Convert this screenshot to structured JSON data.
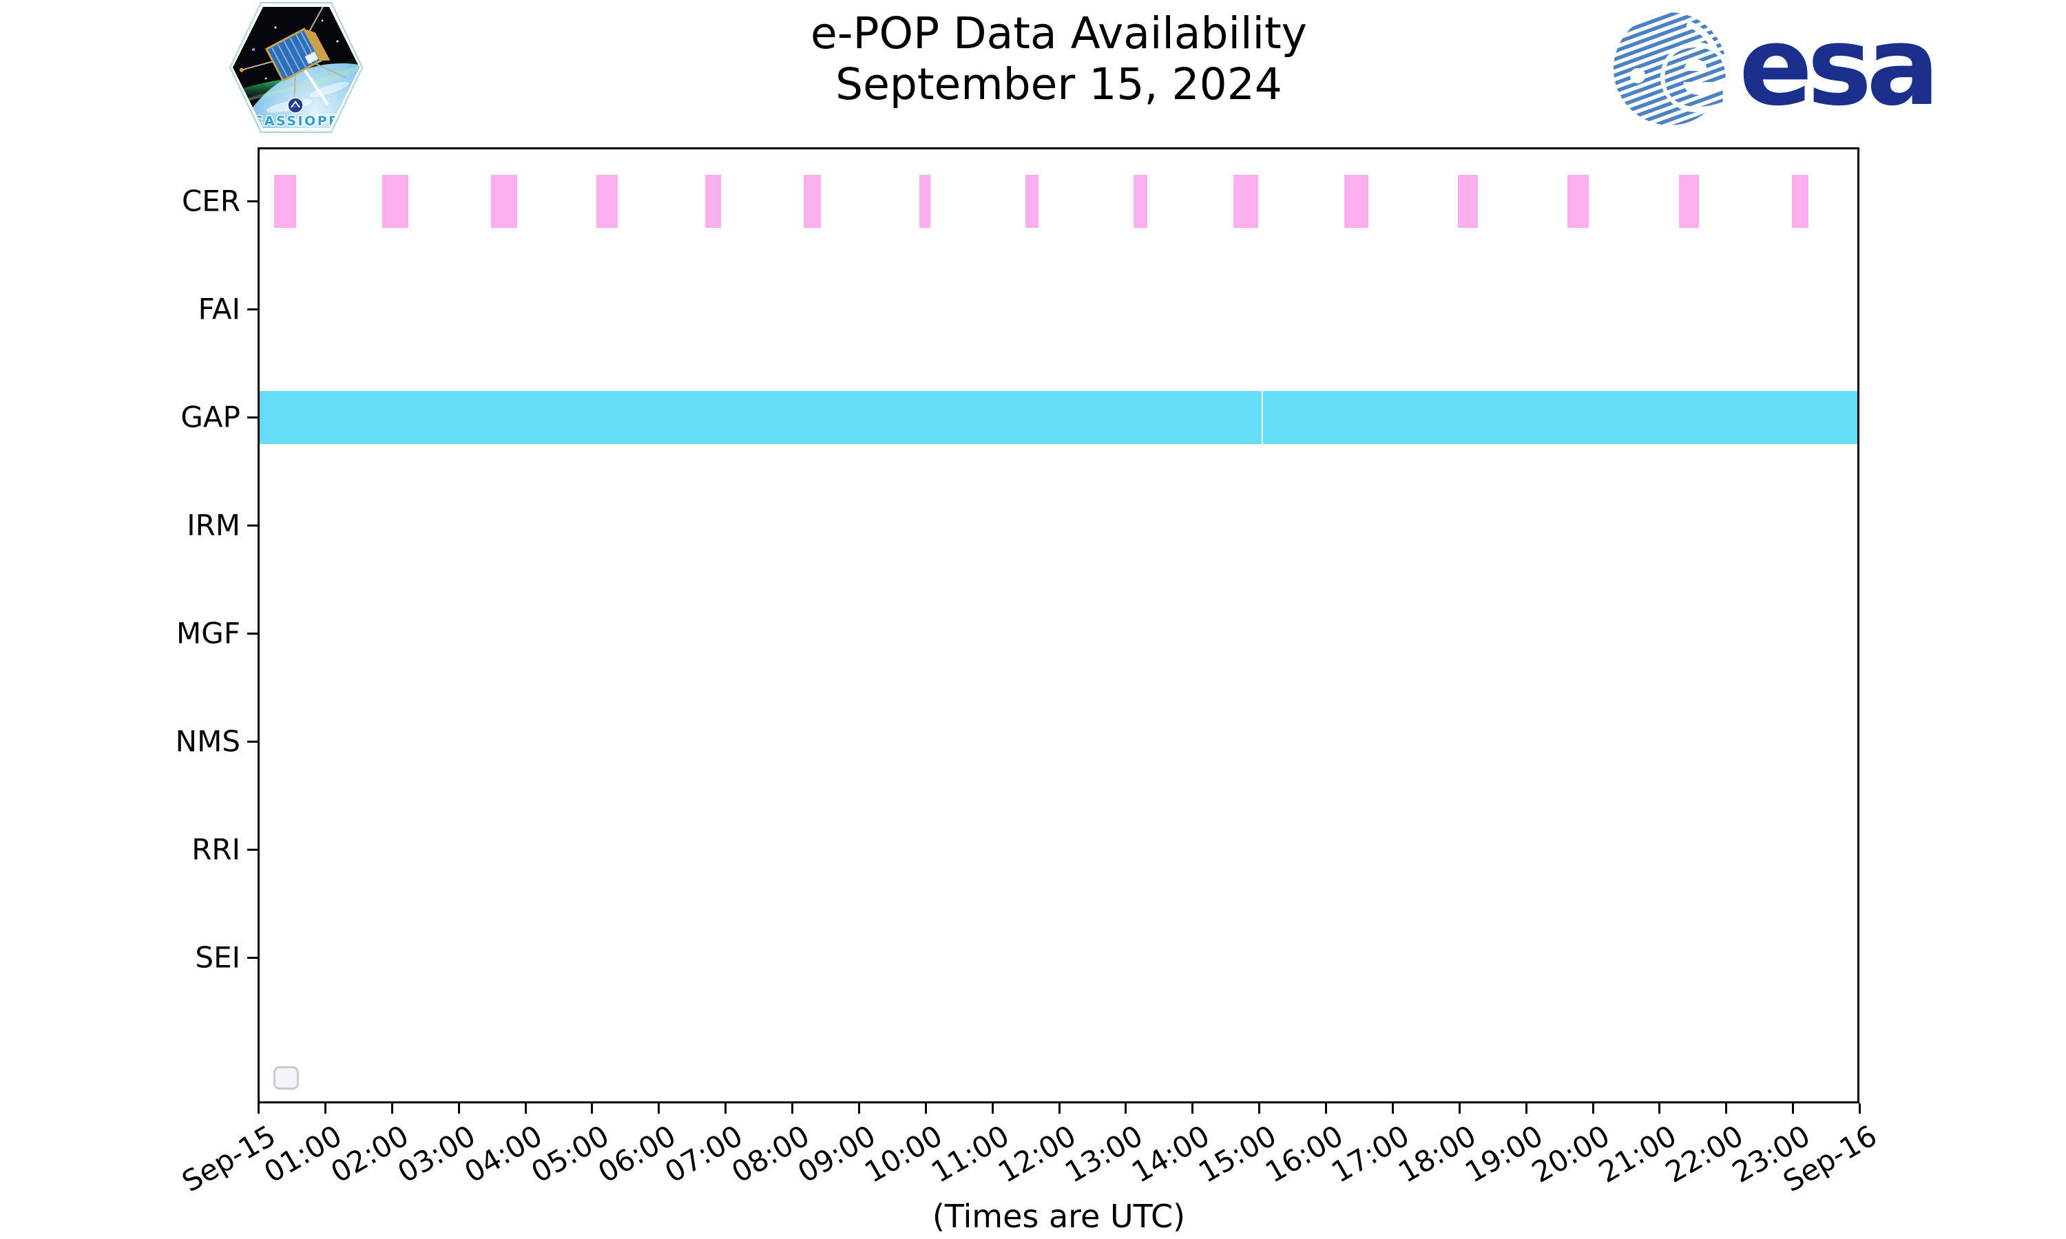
{
  "header": {
    "title": "e-POP Data Availability",
    "subtitle": "September 15, 2024",
    "cassiope_patch_label": "CASSIOPE",
    "esa_wordmark": "esa",
    "esa_globe_letter": "e"
  },
  "chart_data": {
    "type": "timeline-bar",
    "title": "e-POP Data Availability",
    "subtitle": "September 15, 2024",
    "xlabel": "(Times are UTC)",
    "xlim_hours": [
      0,
      24
    ],
    "grid": false,
    "legend": {
      "visible": true,
      "entries": [],
      "position": "lower left"
    },
    "x_tick_labels": [
      "Sep-15",
      "01:00",
      "02:00",
      "03:00",
      "04:00",
      "05:00",
      "06:00",
      "07:00",
      "08:00",
      "09:00",
      "10:00",
      "11:00",
      "12:00",
      "13:00",
      "14:00",
      "15:00",
      "16:00",
      "17:00",
      "18:00",
      "19:00",
      "20:00",
      "21:00",
      "22:00",
      "23:00",
      "Sep-16"
    ],
    "y_categories": [
      "CER",
      "FAI",
      "GAP",
      "IRM",
      "MGF",
      "NMS",
      "RRI",
      "SEI"
    ],
    "colors": {
      "CER": "#fbaeee",
      "GAP": "#63ddf8"
    },
    "rows": [
      {
        "label": "CER",
        "color": "#fbaeee",
        "segments_hours_utc": [
          [
            0.25,
            0.58
          ],
          [
            1.87,
            2.26
          ],
          [
            3.5,
            3.89
          ],
          [
            5.08,
            5.4
          ],
          [
            6.71,
            6.95
          ],
          [
            8.19,
            8.44
          ],
          [
            9.92,
            10.08
          ],
          [
            11.51,
            11.71
          ],
          [
            13.13,
            13.34
          ],
          [
            14.63,
            15.0
          ],
          [
            16.29,
            16.65
          ],
          [
            17.99,
            18.29
          ],
          [
            19.63,
            19.95
          ],
          [
            21.31,
            21.61
          ],
          [
            23.0,
            23.25
          ]
        ]
      },
      {
        "label": "FAI",
        "color": null,
        "segments_hours_utc": []
      },
      {
        "label": "GAP",
        "color": "#63ddf8",
        "segments_hours_utc": [
          [
            0,
            15.05
          ],
          [
            15.07,
            24
          ]
        ]
      },
      {
        "label": "IRM",
        "color": null,
        "segments_hours_utc": []
      },
      {
        "label": "MGF",
        "color": null,
        "segments_hours_utc": []
      },
      {
        "label": "NMS",
        "color": null,
        "segments_hours_utc": []
      },
      {
        "label": "RRI",
        "color": null,
        "segments_hours_utc": []
      },
      {
        "label": "SEI",
        "color": null,
        "segments_hours_utc": []
      }
    ]
  }
}
